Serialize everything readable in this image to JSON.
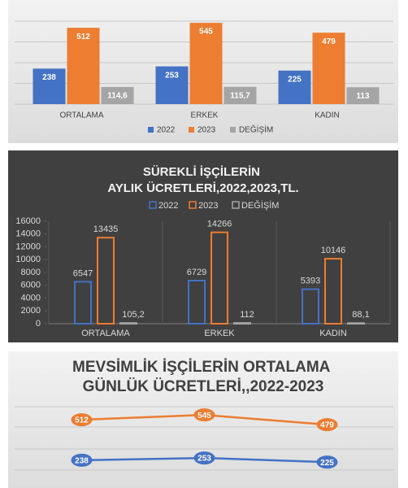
{
  "chart_data": [
    {
      "type": "bar",
      "categories": [
        "ORTALAMA",
        "ERKEK",
        "KADIN"
      ],
      "series": [
        {
          "name": "2022",
          "color": "#4472c4",
          "values": [
            238,
            253,
            225
          ]
        },
        {
          "name": "2023",
          "color": "#ed7d31",
          "values": [
            512,
            545,
            479
          ]
        },
        {
          "name": "DEĞİŞİM",
          "color": "#a5a5a5",
          "values": [
            114.6,
            115.7,
            113
          ],
          "value_labels": [
            "114,6",
            "115,7",
            "113"
          ]
        }
      ],
      "ylim": [
        0,
        600
      ],
      "grid": true,
      "legend": "bottom"
    },
    {
      "type": "bar",
      "style": "outline",
      "title": "SÜREKLİ İŞÇİLERİN AYLIK ÜCRETLERİ,2022,2023,TL.",
      "categories": [
        "ORTALAMA",
        "ERKEK",
        "KADIN"
      ],
      "series": [
        {
          "name": "2022",
          "color": "#4472c4",
          "values": [
            6547,
            6729,
            5393
          ]
        },
        {
          "name": "2023",
          "color": "#ed7d31",
          "values": [
            13435,
            14266,
            10146
          ]
        },
        {
          "name": "DEĞİŞİM",
          "color": "#a5a5a5",
          "values": [
            105.2,
            112,
            88.1
          ],
          "value_labels": [
            "105,2",
            "112",
            "88,1"
          ]
        }
      ],
      "ylim": [
        0,
        16000
      ],
      "yticks": [
        0,
        2000,
        4000,
        6000,
        8000,
        10000,
        12000,
        14000,
        16000
      ],
      "legend": "top"
    },
    {
      "type": "line",
      "title": "MEVSİMLİK İŞÇİLERİN ORTALAMA GÜNLÜK ÜCRETLERİ,,2022-2023",
      "series": [
        {
          "color": "#ed7d31",
          "values": [
            512,
            545,
            479
          ]
        },
        {
          "color": "#4472c4",
          "values": [
            238,
            253,
            225
          ]
        }
      ],
      "ylim": [
        0,
        700
      ],
      "grid": true
    }
  ]
}
